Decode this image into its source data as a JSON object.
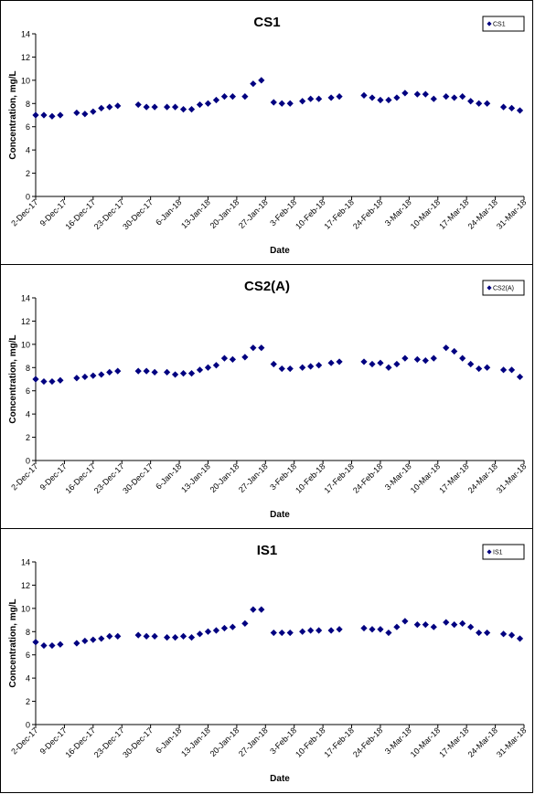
{
  "chart_data": [
    {
      "type": "scatter",
      "title": "CS1",
      "xlabel": "Date",
      "ylabel": "Concentration, mg/L",
      "ylim": [
        0,
        14
      ],
      "yticks": [
        "0",
        "2",
        "4",
        "6",
        "8",
        "10",
        "12",
        "14"
      ],
      "x_tick_labels": [
        "2-Dec-17",
        "9-Dec-17",
        "16-Dec-17",
        "23-Dec-17",
        "30-Dec-17",
        "6-Jan-18",
        "13-Jan-18",
        "20-Jan-18",
        "27-Jan-18",
        "3-Feb-18",
        "10-Feb-18",
        "17-Feb-18",
        "24-Feb-18",
        "3-Mar-18",
        "10-Mar-18",
        "17-Mar-18",
        "24-Mar-18",
        "31-Mar-18"
      ],
      "xlim": [
        "2017-12-02",
        "2018-03-31"
      ],
      "legend_position": "top-right",
      "color": "#000080",
      "series": [
        {
          "name": "CS1",
          "x": [
            "2017-12-02",
            "2017-12-04",
            "2017-12-06",
            "2017-12-08",
            "2017-12-12",
            "2017-12-14",
            "2017-12-16",
            "2017-12-18",
            "2017-12-20",
            "2017-12-22",
            "2017-12-27",
            "2017-12-29",
            "2017-12-31",
            "2018-01-03",
            "2018-01-05",
            "2018-01-07",
            "2018-01-09",
            "2018-01-11",
            "2018-01-13",
            "2018-01-15",
            "2018-01-17",
            "2018-01-19",
            "2018-01-22",
            "2018-01-24",
            "2018-01-26",
            "2018-01-29",
            "2018-01-31",
            "2018-02-02",
            "2018-02-05",
            "2018-02-07",
            "2018-02-09",
            "2018-02-12",
            "2018-02-14",
            "2018-02-20",
            "2018-02-22",
            "2018-02-24",
            "2018-02-26",
            "2018-02-28",
            "2018-03-02",
            "2018-03-05",
            "2018-03-07",
            "2018-03-09",
            "2018-03-12",
            "2018-03-14",
            "2018-03-16",
            "2018-03-18",
            "2018-03-20",
            "2018-03-22",
            "2018-03-26",
            "2018-03-28",
            "2018-03-30"
          ],
          "y": [
            7.0,
            7.0,
            6.9,
            7.0,
            7.2,
            7.1,
            7.3,
            7.6,
            7.7,
            7.8,
            7.9,
            7.7,
            7.7,
            7.7,
            7.7,
            7.5,
            7.5,
            7.9,
            8.0,
            8.3,
            8.6,
            8.6,
            8.6,
            9.7,
            10.0,
            8.1,
            8.0,
            8.0,
            8.2,
            8.4,
            8.4,
            8.5,
            8.6,
            8.7,
            8.5,
            8.3,
            8.3,
            8.5,
            8.9,
            8.8,
            8.8,
            8.4,
            8.6,
            8.5,
            8.6,
            8.2,
            8.0,
            8.0,
            7.7,
            7.6,
            7.4
          ]
        }
      ]
    },
    {
      "type": "scatter",
      "title": "CS2(A)",
      "xlabel": "Date",
      "ylabel": "Concentration, mg/L",
      "ylim": [
        0,
        14
      ],
      "yticks": [
        "0",
        "2",
        "4",
        "6",
        "8",
        "10",
        "12",
        "14"
      ],
      "x_tick_labels": [
        "2-Dec-17",
        "9-Dec-17",
        "16-Dec-17",
        "23-Dec-17",
        "30-Dec-17",
        "6-Jan-18",
        "13-Jan-18",
        "20-Jan-18",
        "27-Jan-18",
        "3-Feb-18",
        "10-Feb-18",
        "17-Feb-18",
        "24-Feb-18",
        "3-Mar-18",
        "10-Mar-18",
        "17-Mar-18",
        "24-Mar-18",
        "31-Mar-18"
      ],
      "xlim": [
        "2017-12-02",
        "2018-03-31"
      ],
      "legend_position": "top-right",
      "color": "#000080",
      "series": [
        {
          "name": "CS2(A)",
          "x": [
            "2017-12-02",
            "2017-12-04",
            "2017-12-06",
            "2017-12-08",
            "2017-12-12",
            "2017-12-14",
            "2017-12-16",
            "2017-12-18",
            "2017-12-20",
            "2017-12-22",
            "2017-12-27",
            "2017-12-29",
            "2017-12-31",
            "2018-01-03",
            "2018-01-05",
            "2018-01-07",
            "2018-01-09",
            "2018-01-11",
            "2018-01-13",
            "2018-01-15",
            "2018-01-17",
            "2018-01-19",
            "2018-01-22",
            "2018-01-24",
            "2018-01-26",
            "2018-01-29",
            "2018-01-31",
            "2018-02-02",
            "2018-02-05",
            "2018-02-07",
            "2018-02-09",
            "2018-02-12",
            "2018-02-14",
            "2018-02-20",
            "2018-02-22",
            "2018-02-24",
            "2018-02-26",
            "2018-02-28",
            "2018-03-02",
            "2018-03-05",
            "2018-03-07",
            "2018-03-09",
            "2018-03-12",
            "2018-03-14",
            "2018-03-16",
            "2018-03-18",
            "2018-03-20",
            "2018-03-22",
            "2018-03-26",
            "2018-03-28",
            "2018-03-30"
          ],
          "y": [
            7.0,
            6.8,
            6.8,
            6.9,
            7.1,
            7.2,
            7.3,
            7.4,
            7.6,
            7.7,
            7.7,
            7.7,
            7.6,
            7.6,
            7.4,
            7.5,
            7.5,
            7.8,
            8.0,
            8.2,
            8.8,
            8.7,
            8.9,
            9.7,
            9.7,
            8.3,
            7.9,
            7.9,
            8.0,
            8.1,
            8.2,
            8.4,
            8.5,
            8.5,
            8.3,
            8.4,
            8.0,
            8.3,
            8.8,
            8.7,
            8.6,
            8.8,
            9.7,
            9.4,
            8.8,
            8.3,
            7.9,
            8.0,
            7.8,
            7.8,
            7.2
          ]
        }
      ]
    },
    {
      "type": "scatter",
      "title": "IS1",
      "xlabel": "Date",
      "ylabel": "Concentration, mg/L",
      "ylim": [
        0,
        14
      ],
      "yticks": [
        "0",
        "2",
        "4",
        "6",
        "8",
        "10",
        "12",
        "14"
      ],
      "x_tick_labels": [
        "2-Dec-17",
        "9-Dec-17",
        "16-Dec-17",
        "23-Dec-17",
        "30-Dec-17",
        "6-Jan-18",
        "13-Jan-18",
        "20-Jan-18",
        "27-Jan-18",
        "3-Feb-18",
        "10-Feb-18",
        "17-Feb-18",
        "24-Feb-18",
        "3-Mar-18",
        "10-Mar-18",
        "17-Mar-18",
        "24-Mar-18",
        "31-Mar-18"
      ],
      "xlim": [
        "2017-12-02",
        "2018-03-31"
      ],
      "legend_position": "top-right",
      "color": "#000080",
      "series": [
        {
          "name": "IS1",
          "x": [
            "2017-12-02",
            "2017-12-04",
            "2017-12-06",
            "2017-12-08",
            "2017-12-12",
            "2017-12-14",
            "2017-12-16",
            "2017-12-18",
            "2017-12-20",
            "2017-12-22",
            "2017-12-27",
            "2017-12-29",
            "2017-12-31",
            "2018-01-03",
            "2018-01-05",
            "2018-01-07",
            "2018-01-09",
            "2018-01-11",
            "2018-01-13",
            "2018-01-15",
            "2018-01-17",
            "2018-01-19",
            "2018-01-22",
            "2018-01-24",
            "2018-01-26",
            "2018-01-29",
            "2018-01-31",
            "2018-02-02",
            "2018-02-05",
            "2018-02-07",
            "2018-02-09",
            "2018-02-12",
            "2018-02-14",
            "2018-02-20",
            "2018-02-22",
            "2018-02-24",
            "2018-02-26",
            "2018-02-28",
            "2018-03-02",
            "2018-03-05",
            "2018-03-07",
            "2018-03-09",
            "2018-03-12",
            "2018-03-14",
            "2018-03-16",
            "2018-03-18",
            "2018-03-20",
            "2018-03-22",
            "2018-03-26",
            "2018-03-28",
            "2018-03-30"
          ],
          "y": [
            7.1,
            6.8,
            6.8,
            6.9,
            7.0,
            7.2,
            7.3,
            7.4,
            7.6,
            7.6,
            7.7,
            7.6,
            7.6,
            7.5,
            7.5,
            7.6,
            7.5,
            7.8,
            8.0,
            8.1,
            8.3,
            8.4,
            8.7,
            9.9,
            9.9,
            7.9,
            7.9,
            7.9,
            8.0,
            8.1,
            8.1,
            8.1,
            8.2,
            8.3,
            8.2,
            8.2,
            7.9,
            8.4,
            8.9,
            8.6,
            8.6,
            8.4,
            8.8,
            8.6,
            8.7,
            8.4,
            7.9,
            7.9,
            7.8,
            7.7,
            7.4
          ]
        }
      ]
    }
  ]
}
